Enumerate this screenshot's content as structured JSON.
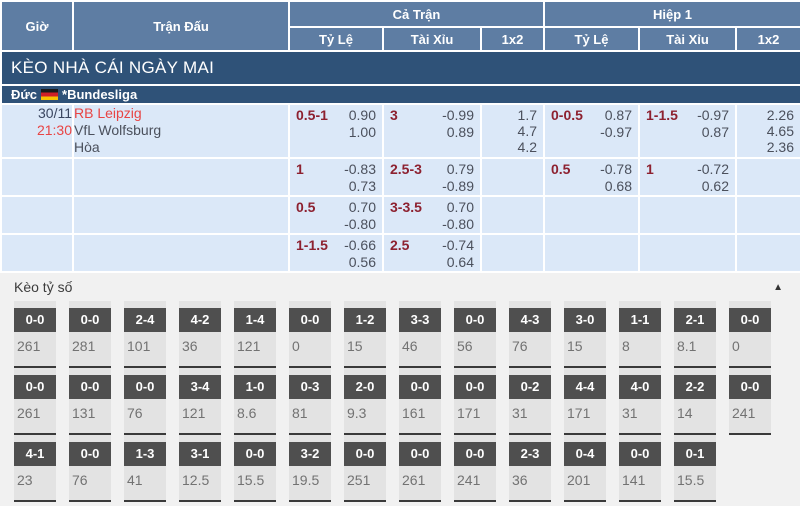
{
  "colors": {
    "header_blue": "#5e7da3",
    "banner_navy": "#2f5278",
    "row_light_blue": "#dbe8f8",
    "team_red": "#e84444",
    "handicap_maroon": "#8d2130",
    "score_box_dark": "#4f4f4f",
    "section_gray": "#f1f1f1"
  },
  "header": {
    "col_time": "Giờ",
    "col_match": "Trận Đấu",
    "group_full": "Cả Trận",
    "group_half": "Hiệp 1",
    "sub_odds": "Tỷ Lệ",
    "sub_ou": "Tài Xỉu",
    "sub_1x2": "1x2"
  },
  "banner": {
    "title": "KÈO NHÀ CÁI NGÀY MAI"
  },
  "league": {
    "country": "Đức",
    "flag_icon": "germany-flag-icon",
    "name": "*Bundesliga"
  },
  "match": {
    "date": "30/11",
    "time": "21:30",
    "home": "RB Leipzig",
    "away": "VfL Wolfsburg",
    "draw_label": "Hòa",
    "rows": [
      {
        "ft_hdp": {
          "line": "0.5-1",
          "odds": [
            "0.90",
            "1.00"
          ]
        },
        "ft_ou": {
          "line": "3",
          "odds": [
            "-0.99",
            "0.89"
          ]
        },
        "ft_1x2": [
          "1.7",
          "4.7",
          "4.2"
        ],
        "h1_hdp": {
          "line": "0-0.5",
          "odds": [
            "0.87",
            "-0.97"
          ]
        },
        "h1_ou": {
          "line": "1-1.5",
          "odds": [
            "-0.97",
            "0.87"
          ]
        },
        "h1_1x2": [
          "2.26",
          "4.65",
          "2.36"
        ]
      },
      {
        "ft_hdp": {
          "line": "1",
          "odds": [
            "-0.83",
            "0.73"
          ]
        },
        "ft_ou": {
          "line": "2.5-3",
          "odds": [
            "0.79",
            "-0.89"
          ]
        },
        "ft_1x2": [],
        "h1_hdp": {
          "line": "0.5",
          "odds": [
            "-0.78",
            "0.68"
          ]
        },
        "h1_ou": {
          "line": "1",
          "odds": [
            "-0.72",
            "0.62"
          ]
        },
        "h1_1x2": []
      },
      {
        "ft_hdp": {
          "line": "0.5",
          "odds": [
            "0.70",
            "-0.80"
          ]
        },
        "ft_ou": {
          "line": "3-3.5",
          "odds": [
            "0.70",
            "-0.80"
          ]
        },
        "ft_1x2": [],
        "h1_hdp": null,
        "h1_ou": null,
        "h1_1x2": []
      },
      {
        "ft_hdp": {
          "line": "1-1.5",
          "odds": [
            "-0.66",
            "0.56"
          ]
        },
        "ft_ou": {
          "line": "2.5",
          "odds": [
            "-0.74",
            "0.64"
          ]
        },
        "ft_1x2": [],
        "h1_hdp": null,
        "h1_ou": null,
        "h1_1x2": []
      }
    ]
  },
  "correct_score": {
    "title": "Kèo tỷ số",
    "collapse_icon": "chevron-up-icon",
    "rows": [
      [
        {
          "score": "0-0",
          "odds": "261"
        },
        {
          "score": "0-0",
          "odds": "281"
        },
        {
          "score": "2-4",
          "odds": "101"
        },
        {
          "score": "4-2",
          "odds": "36"
        },
        {
          "score": "1-4",
          "odds": "121"
        },
        {
          "score": "0-0",
          "odds": "0"
        },
        {
          "score": "1-2",
          "odds": "15"
        },
        {
          "score": "3-3",
          "odds": "46"
        },
        {
          "score": "0-0",
          "odds": "56"
        },
        {
          "score": "4-3",
          "odds": "76"
        },
        {
          "score": "3-0",
          "odds": "15"
        },
        {
          "score": "1-1",
          "odds": "8"
        },
        {
          "score": "2-1",
          "odds": "8.1"
        },
        {
          "score": "0-0",
          "odds": "0"
        }
      ],
      [
        {
          "score": "0-0",
          "odds": "261"
        },
        {
          "score": "0-0",
          "odds": "131"
        },
        {
          "score": "0-0",
          "odds": "76"
        },
        {
          "score": "3-4",
          "odds": "121"
        },
        {
          "score": "1-0",
          "odds": "8.6"
        },
        {
          "score": "0-3",
          "odds": "81"
        },
        {
          "score": "2-0",
          "odds": "9.3"
        },
        {
          "score": "0-0",
          "odds": "161"
        },
        {
          "score": "0-0",
          "odds": "171"
        },
        {
          "score": "0-2",
          "odds": "31"
        },
        {
          "score": "4-4",
          "odds": "171"
        },
        {
          "score": "4-0",
          "odds": "31"
        },
        {
          "score": "2-2",
          "odds": "14"
        },
        {
          "score": "0-0",
          "odds": "241"
        }
      ],
      [
        {
          "score": "4-1",
          "odds": "23"
        },
        {
          "score": "0-0",
          "odds": "76"
        },
        {
          "score": "1-3",
          "odds": "41"
        },
        {
          "score": "3-1",
          "odds": "12.5"
        },
        {
          "score": "0-0",
          "odds": "15.5"
        },
        {
          "score": "3-2",
          "odds": "19.5"
        },
        {
          "score": "0-0",
          "odds": "251"
        },
        {
          "score": "0-0",
          "odds": "261"
        },
        {
          "score": "0-0",
          "odds": "241"
        },
        {
          "score": "2-3",
          "odds": "36"
        },
        {
          "score": "0-4",
          "odds": "201"
        },
        {
          "score": "0-0",
          "odds": "141"
        },
        {
          "score": "0-1",
          "odds": "15.5"
        },
        null
      ]
    ]
  }
}
